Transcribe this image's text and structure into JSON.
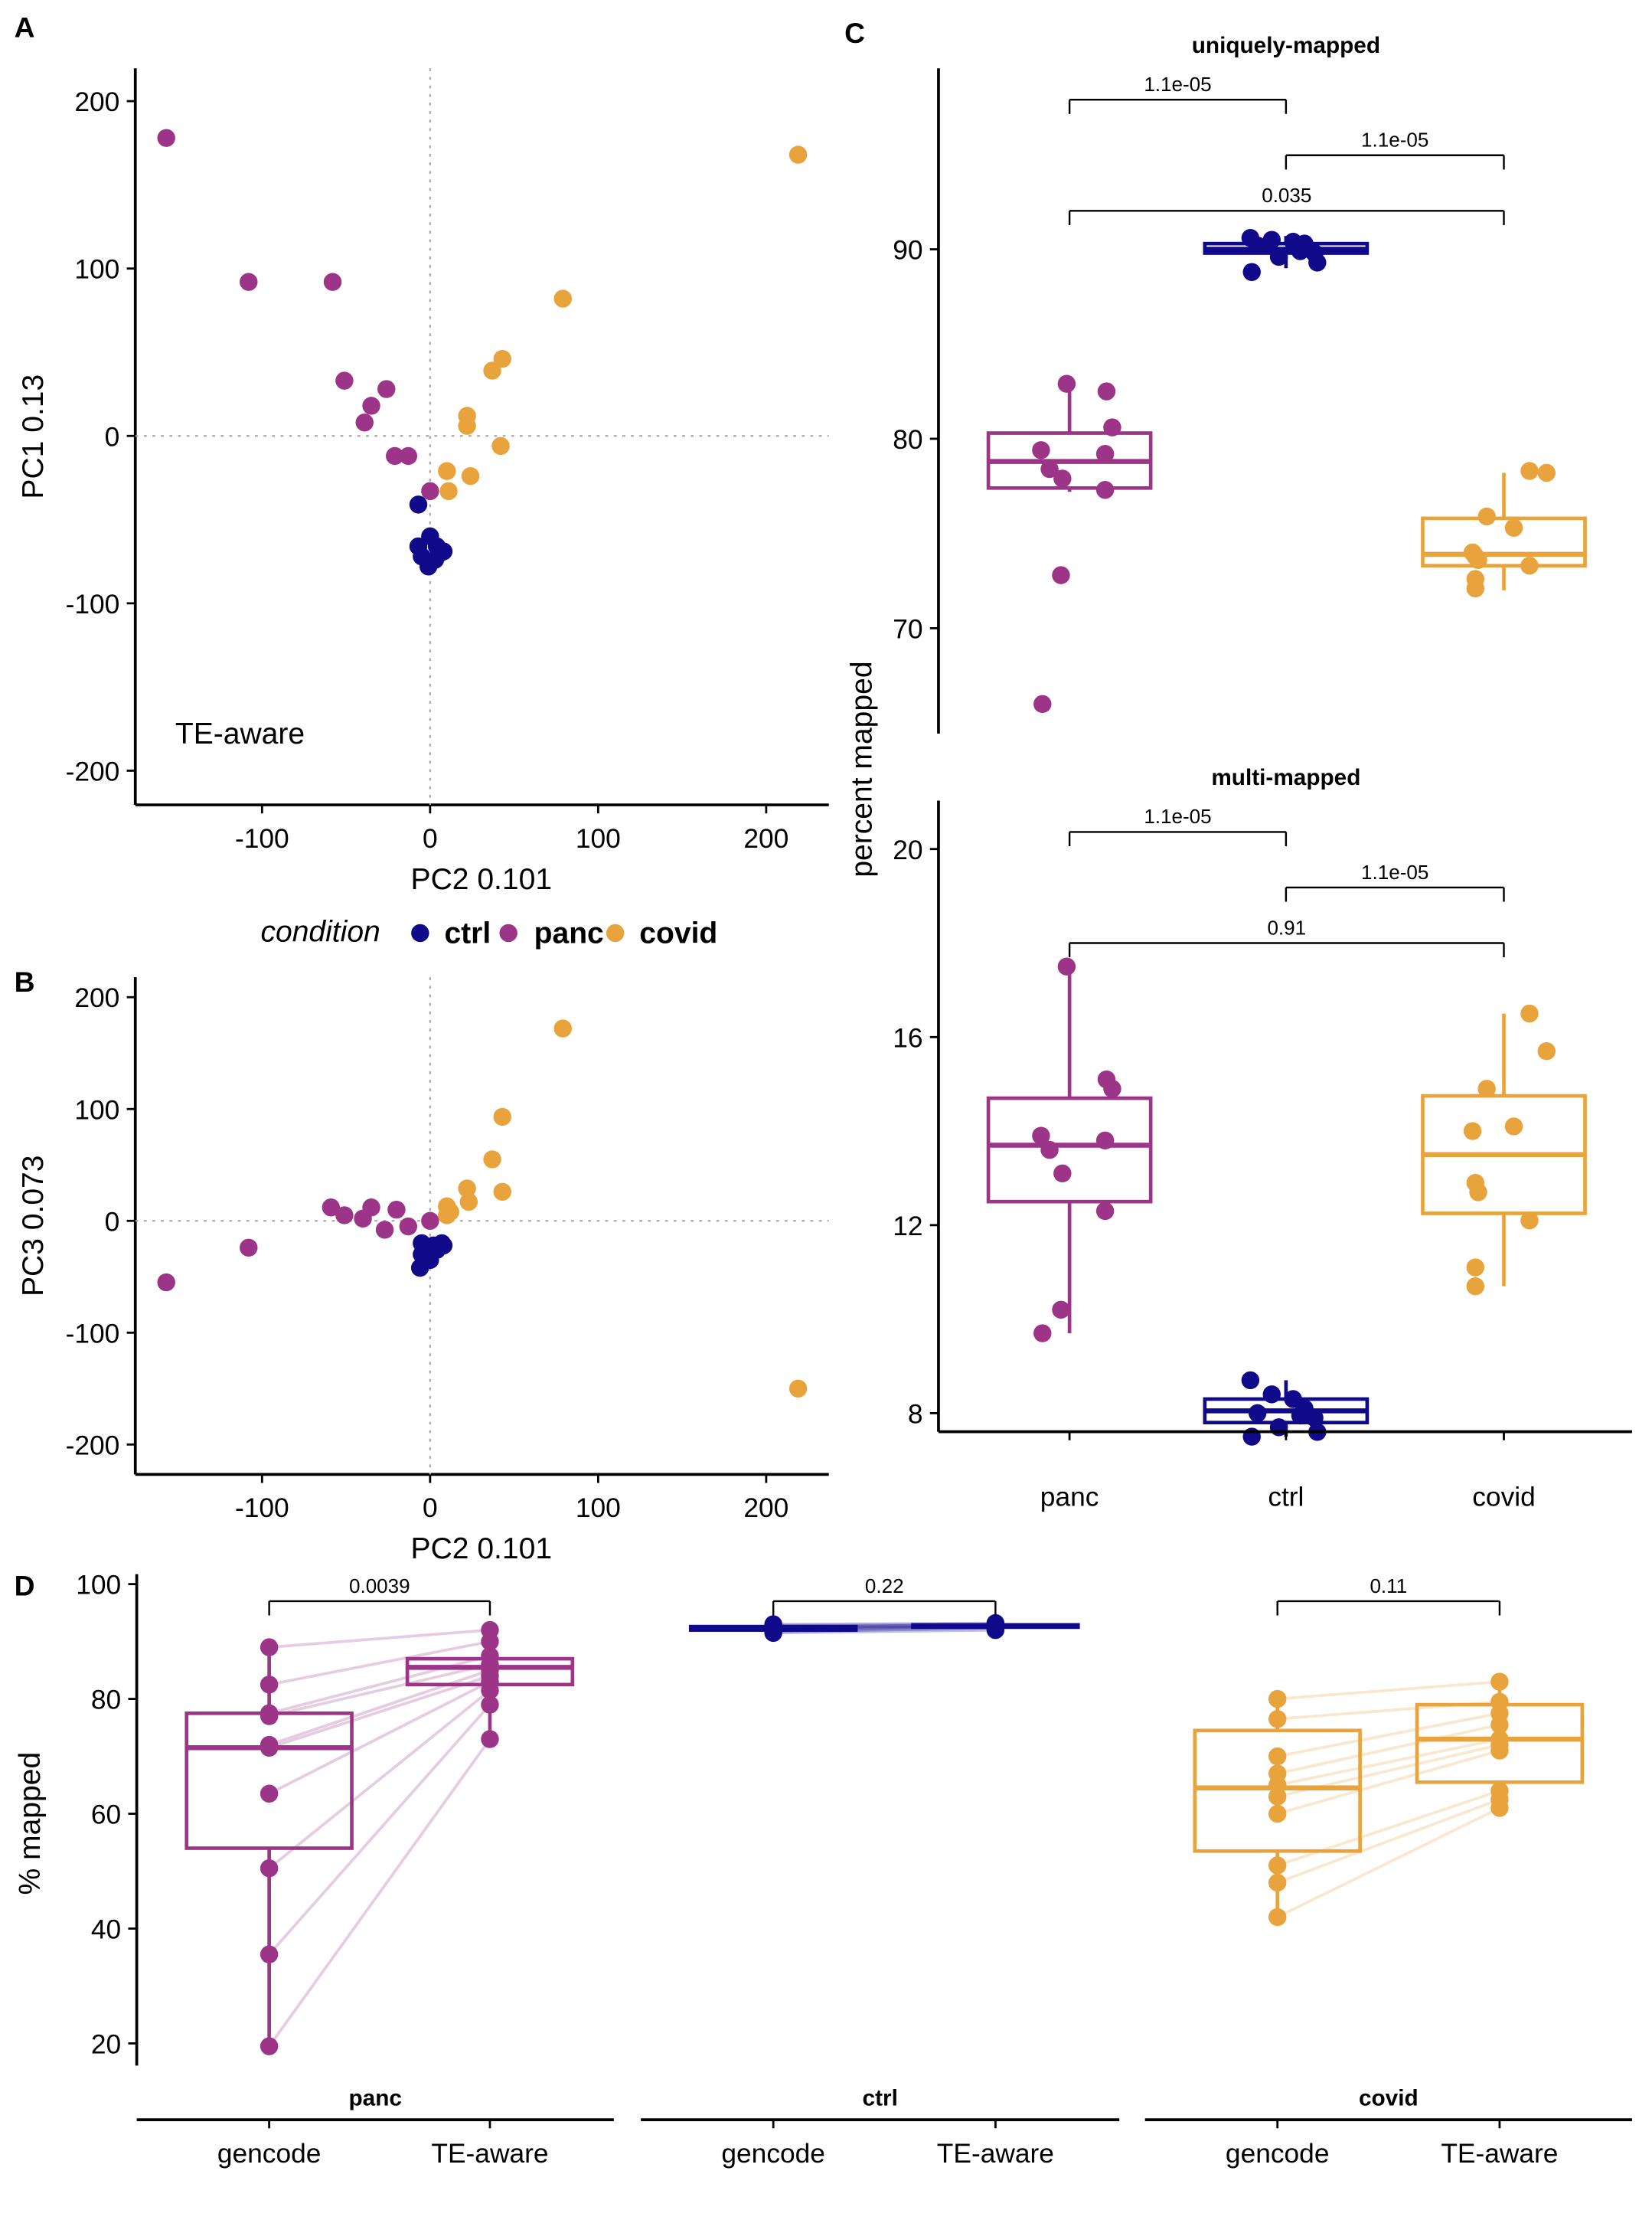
{
  "colors": {
    "ctrl": "#10098a",
    "panc": "#9c3587",
    "covid": "#e8a33d"
  },
  "legend": {
    "title": "condition",
    "items": [
      "ctrl",
      "panc",
      "covid"
    ]
  },
  "chart_data": [
    {
      "id": "A",
      "panel_label": "A",
      "type": "scatter",
      "xlabel": "PC2 0.101",
      "ylabel": "PC1 0.13",
      "annotation": "TE-aware",
      "xlim": [
        -170,
        240
      ],
      "ylim": [
        -220,
        220
      ],
      "xticks": [
        -100,
        0,
        100,
        200
      ],
      "yticks": [
        -200,
        -100,
        0,
        100,
        200
      ],
      "reference_lines": "dotted at x=0 and y=0",
      "series": [
        {
          "name": "panc",
          "points": [
            [
              -157,
              178
            ],
            [
              -108,
              92
            ],
            [
              -58,
              92
            ],
            [
              -51,
              33
            ],
            [
              -35,
              18
            ],
            [
              -39,
              8
            ],
            [
              -26,
              28
            ],
            [
              -21,
              -12
            ],
            [
              -13,
              -12
            ],
            [
              0,
              -33
            ]
          ]
        },
        {
          "name": "covid",
          "points": [
            [
              219,
              168
            ],
            [
              79,
              82
            ],
            [
              43,
              46
            ],
            [
              37,
              39
            ],
            [
              22,
              12
            ],
            [
              22,
              6
            ],
            [
              42,
              -6
            ],
            [
              10,
              -21
            ],
            [
              24,
              -24
            ],
            [
              11,
              -33
            ]
          ]
        },
        {
          "name": "ctrl",
          "points": [
            [
              -7,
              -41
            ],
            [
              0,
              -60
            ],
            [
              -7,
              -66
            ],
            [
              4,
              -66
            ],
            [
              -5,
              -72
            ],
            [
              6,
              -70
            ],
            [
              0,
              -76
            ],
            [
              8,
              -69
            ],
            [
              3,
              -74
            ],
            [
              -1,
              -78
            ]
          ]
        }
      ]
    },
    {
      "id": "B",
      "panel_label": "B",
      "type": "scatter",
      "xlabel": "PC2 0.101",
      "ylabel": "PC3 0.073",
      "xlim": [
        -170,
        240
      ],
      "ylim": [
        -225,
        220
      ],
      "xticks": [
        -100,
        0,
        100,
        200
      ],
      "yticks": [
        -200,
        -100,
        0,
        100,
        200
      ],
      "reference_lines": "dotted at x=0 and y=0",
      "series": [
        {
          "name": "panc",
          "points": [
            [
              -157,
              -55
            ],
            [
              -108,
              -24
            ],
            [
              -59,
              12
            ],
            [
              -51,
              5
            ],
            [
              -40,
              2
            ],
            [
              -35,
              12
            ],
            [
              -27,
              -8
            ],
            [
              -20,
              10
            ],
            [
              -13,
              -5
            ],
            [
              0,
              0
            ]
          ]
        },
        {
          "name": "covid",
          "points": [
            [
              79,
              172
            ],
            [
              43,
              93
            ],
            [
              37,
              55
            ],
            [
              22,
              29
            ],
            [
              43,
              26
            ],
            [
              23,
              17
            ],
            [
              10,
              13
            ],
            [
              10,
              5
            ],
            [
              12,
              8
            ],
            [
              219,
              -150
            ]
          ]
        },
        {
          "name": "ctrl",
          "points": [
            [
              -5,
              -20
            ],
            [
              -3,
              -27
            ],
            [
              2,
              -22
            ],
            [
              7,
              -20
            ],
            [
              -5,
              -30
            ],
            [
              0,
              -25
            ],
            [
              -6,
              -42
            ],
            [
              4,
              -26
            ],
            [
              8,
              -22
            ],
            [
              0,
              -35
            ]
          ]
        }
      ]
    },
    {
      "id": "C1",
      "panel_label": "C",
      "type": "box",
      "title": "uniquely-mapped",
      "ylabel": "percent mapped",
      "yticks": [
        70,
        80,
        90
      ],
      "ylim": [
        63.5,
        99
      ],
      "categories": [
        "panc",
        "ctrl",
        "covid"
      ],
      "boxes": [
        {
          "name": "panc",
          "whisker_low": 77.2,
          "q1": 77.4,
          "median": 78.8,
          "q3": 80.3,
          "whisker_high": 82.9,
          "points": [
            82.9,
            82.5,
            80.6,
            79.4,
            79.2,
            78.4,
            77.9,
            77.3,
            72.8,
            66.0
          ]
        },
        {
          "name": "ctrl",
          "whisker_low": 89.0,
          "q1": 89.8,
          "median": 90.0,
          "q3": 90.3,
          "whisker_high": 90.7,
          "points": [
            90.6,
            90.5,
            90.4,
            90.3,
            90.2,
            89.9,
            89.8,
            89.6,
            89.3,
            88.8
          ]
        },
        {
          "name": "covid",
          "whisker_low": 72.0,
          "q1": 73.3,
          "median": 73.9,
          "q3": 75.8,
          "whisker_high": 78.2,
          "points": [
            78.3,
            78.2,
            75.9,
            75.3,
            74.0,
            73.8,
            73.6,
            73.3,
            72.6,
            72.1
          ]
        }
      ],
      "comparisons": [
        {
          "groups": [
            "panc",
            "ctrl"
          ],
          "p": "1.1e-05"
        },
        {
          "groups": [
            "ctrl",
            "covid"
          ],
          "p": "1.1e-05"
        },
        {
          "groups": [
            "panc",
            "covid"
          ],
          "p": "0.035"
        }
      ]
    },
    {
      "id": "C2",
      "type": "box",
      "title": "multi-mapped",
      "yticks": [
        8,
        12,
        16,
        20
      ],
      "ylim": [
        7.6,
        20.8
      ],
      "categories": [
        "panc",
        "ctrl",
        "covid"
      ],
      "boxes": [
        {
          "name": "panc",
          "whisker_low": 9.7,
          "q1": 12.5,
          "median": 13.7,
          "q3": 14.7,
          "whisker_high": 17.5,
          "points": [
            17.5,
            15.1,
            14.9,
            13.9,
            13.8,
            13.6,
            13.1,
            12.3,
            10.2,
            9.7
          ]
        },
        {
          "name": "ctrl",
          "whisker_low": 7.5,
          "q1": 7.8,
          "median": 8.05,
          "q3": 8.3,
          "whisker_high": 8.7,
          "points": [
            8.7,
            8.4,
            8.3,
            8.1,
            8.0,
            7.95,
            7.9,
            7.7,
            7.6,
            7.5
          ]
        },
        {
          "name": "covid",
          "whisker_low": 10.7,
          "q1": 12.25,
          "median": 13.5,
          "q3": 14.75,
          "whisker_high": 16.5,
          "points": [
            16.5,
            15.7,
            14.9,
            14.1,
            14.0,
            12.9,
            12.7,
            12.1,
            11.1,
            10.7
          ]
        }
      ],
      "comparisons": [
        {
          "groups": [
            "panc",
            "ctrl"
          ],
          "p": "1.1e-05"
        },
        {
          "groups": [
            "ctrl",
            "covid"
          ],
          "p": "1.1e-05"
        },
        {
          "groups": [
            "panc",
            "covid"
          ],
          "p": "0.91"
        }
      ]
    },
    {
      "id": "D",
      "panel_label": "D",
      "type": "box",
      "ylabel": "% mapped",
      "yticks": [
        20,
        40,
        60,
        80,
        100
      ],
      "ylim": [
        16,
        102
      ],
      "categories": [
        "gencode",
        "TE-aware"
      ],
      "facets": [
        {
          "name": "panc",
          "p": "0.0039",
          "gencode": {
            "whisker_low": 19.5,
            "q1": 54,
            "median": 71.5,
            "q3": 77.5,
            "whisker_high": 89,
            "points": [
              89,
              82.5,
              77.5,
              77,
              72,
              71.5,
              63.5,
              50.5,
              35.5,
              19.5
            ]
          },
          "te": {
            "whisker_low": 73,
            "q1": 82.5,
            "median": 85.5,
            "q3": 87,
            "whisker_high": 92,
            "points": [
              92,
              90,
              87.5,
              86,
              85,
              84,
              83,
              81.5,
              79,
              73
            ]
          }
        },
        {
          "name": "ctrl",
          "p": "0.22",
          "gencode": {
            "whisker_low": 91.5,
            "q1": 92.0,
            "median": 92.3,
            "q3": 92.6,
            "whisker_high": 93.0,
            "points": [
              93.0,
              92.8,
              92.6,
              92.5,
              92.4,
              92.2,
              92.0,
              91.9,
              91.7,
              91.5
            ]
          },
          "te": {
            "whisker_low": 92.0,
            "q1": 92.5,
            "median": 92.7,
            "q3": 92.9,
            "whisker_high": 93.2,
            "points": [
              93.2,
              93.0,
              92.9,
              92.8,
              92.7,
              92.7,
              92.6,
              92.5,
              92.3,
              92.0
            ]
          }
        },
        {
          "name": "covid",
          "p": "0.11",
          "gencode": {
            "whisker_low": 42,
            "q1": 53.5,
            "median": 64.5,
            "q3": 74.5,
            "whisker_high": 80,
            "points": [
              80,
              76.5,
              70,
              67,
              65,
              63,
              60,
              51,
              48,
              42
            ]
          },
          "te": {
            "whisker_low": 61,
            "q1": 65.5,
            "median": 73,
            "q3": 79,
            "whisker_high": 83,
            "points": [
              83,
              79.5,
              77.5,
              75.5,
              73,
              72,
              71,
              64,
              62.5,
              61
            ]
          }
        }
      ]
    }
  ]
}
